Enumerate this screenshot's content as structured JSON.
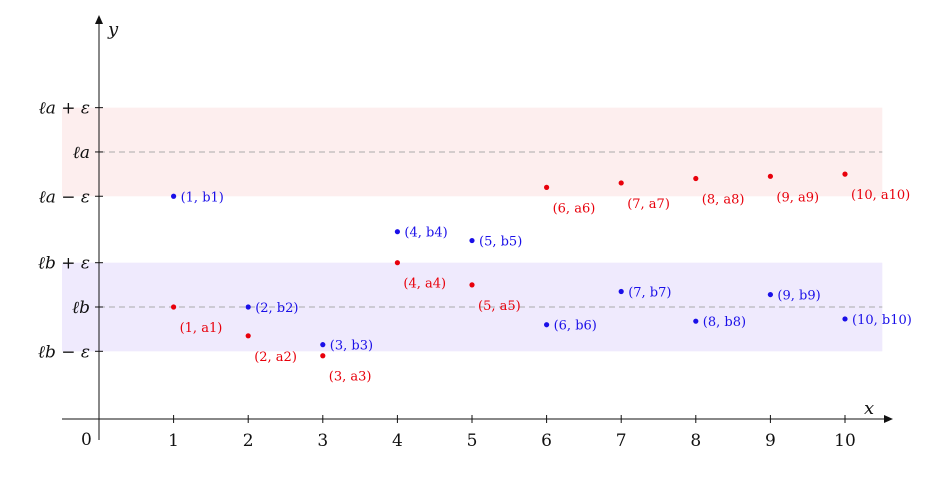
{
  "chart_data": {
    "type": "scatter",
    "xlabel": "x",
    "ylabel": "y",
    "origin_label": "0",
    "x_ticks": [
      1,
      2,
      3,
      4,
      5,
      6,
      7,
      8,
      9,
      10
    ],
    "xlim": [
      -0.5,
      10.5
    ],
    "ylim": [
      -4.7,
      6.0
    ],
    "y_levels": [
      {
        "label": "ℓa + ε",
        "value": 4.5
      },
      {
        "label": "ℓa",
        "value": 3.5,
        "dashed": true
      },
      {
        "label": "ℓa − ε",
        "value": 2.5
      },
      {
        "label": "ℓb + ε",
        "value": 1.0
      },
      {
        "label": "ℓb",
        "value": 0.0,
        "dashed": true
      },
      {
        "label": "ℓb − ε",
        "value": -1.0
      }
    ],
    "bands": [
      {
        "from": 2.5,
        "to": 4.5,
        "color": "#fdeeee"
      },
      {
        "from": -1.0,
        "to": 1.0,
        "color": "#efeafd"
      }
    ],
    "series": [
      {
        "color": "#e8000b",
        "label_side": "below",
        "points": [
          {
            "x": 1,
            "y": 0.0,
            "label": "(1, a1)"
          },
          {
            "x": 2,
            "y": -0.65,
            "label": "(2, a2)"
          },
          {
            "x": 3,
            "y": -1.1,
            "label": "(3, a3)"
          },
          {
            "x": 4,
            "y": 1.0,
            "label": "(4, a4)"
          },
          {
            "x": 5,
            "y": 0.5,
            "label": "(5, a5)"
          },
          {
            "x": 6,
            "y": 2.7,
            "label": "(6, a6)"
          },
          {
            "x": 7,
            "y": 2.8,
            "label": "(7, a7)"
          },
          {
            "x": 8,
            "y": 2.9,
            "label": "(8, a8)"
          },
          {
            "x": 9,
            "y": 2.95,
            "label": "(9, a9)"
          },
          {
            "x": 10,
            "y": 3.0,
            "label": "(10, a10)"
          }
        ]
      },
      {
        "color": "#1a0fe8",
        "label_side": "right",
        "points": [
          {
            "x": 1,
            "y": 2.5,
            "label": "(1, b1)"
          },
          {
            "x": 2,
            "y": 0.0,
            "label": "(2, b2)"
          },
          {
            "x": 3,
            "y": -0.85,
            "label": "(3, b3)"
          },
          {
            "x": 4,
            "y": 1.7,
            "label": "(4, b4)"
          },
          {
            "x": 5,
            "y": 1.5,
            "label": "(5, b5)"
          },
          {
            "x": 6,
            "y": -0.4,
            "label": "(6, b6)"
          },
          {
            "x": 7,
            "y": 0.35,
            "label": "(7, b7)"
          },
          {
            "x": 8,
            "y": -0.32,
            "label": "(8, b8)"
          },
          {
            "x": 9,
            "y": 0.28,
            "label": "(9, b9)"
          },
          {
            "x": 10,
            "y": -0.27,
            "label": "(10, b10)"
          }
        ]
      }
    ],
    "grid": false
  }
}
